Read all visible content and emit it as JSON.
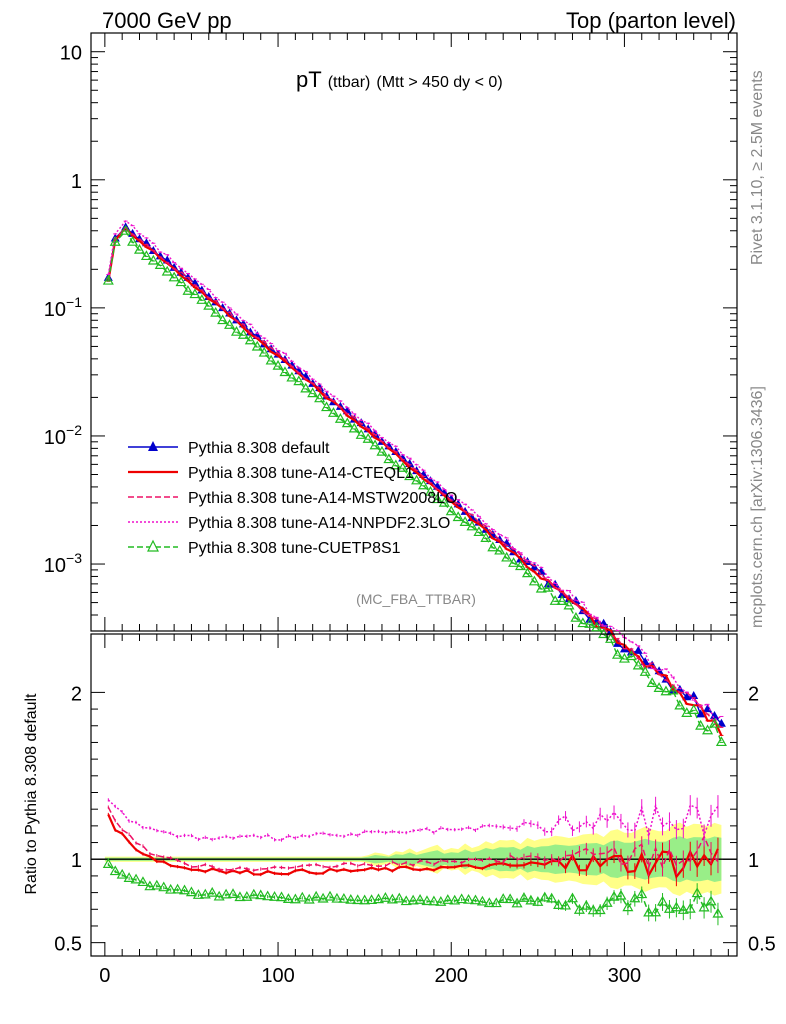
{
  "header": {
    "left": "7000 GeV pp",
    "right": "Top (parton level)"
  },
  "side_labels": {
    "rivet": "Rivet 3.1.10, ≥ 2.5M events",
    "mcplots": "mcplots.cern.ch [arXiv:1306.3436]"
  },
  "chart_data": [
    {
      "type": "line",
      "title_main": "pT",
      "title_sub1": "(ttbar)",
      "title_sub2": "(Mtt > 450 dy < 0)",
      "analysis_tag": "(MC_FBA_TTBAR)",
      "yscale": "log",
      "ylim": [
        0.0003,
        14
      ],
      "xlim": [
        -8,
        365
      ],
      "ytick_labels": [
        {
          "value": 10,
          "label": "10"
        },
        {
          "value": 1,
          "label": "1"
        },
        {
          "value": 0.1,
          "base": "10",
          "exp": "−1"
        },
        {
          "value": 0.01,
          "base": "10",
          "exp": "−2"
        },
        {
          "value": 0.001,
          "base": "10",
          "exp": "−3"
        }
      ],
      "legend_position": "lower-left",
      "model": {
        "peak_x": 12,
        "peak_y": 0.43,
        "first_points": [
          [
            2,
            0.17
          ],
          [
            6,
            0.34
          ]
        ],
        "decay_per_unit_x": 0.0151,
        "x_end": 357,
        "step": 4
      },
      "series": [
        {
          "name": "Pythia 8.308 default",
          "color": "#0000cc",
          "style": "solid",
          "marker": "triangle-filled",
          "scale": 1.0
        },
        {
          "name": "Pythia 8.308 tune-A14-CTEQL1",
          "color": "#ee0000",
          "style": "solid",
          "marker": "none",
          "scale": 0.97
        },
        {
          "name": "Pythia 8.308 tune-A14-MSTW2008LO",
          "color": "#ee1166",
          "style": "dashed",
          "marker": "none",
          "scale": 1.0
        },
        {
          "name": "Pythia 8.308 tune-A14-NNPDF2.3LO",
          "color": "#ee11cc",
          "style": "dotted",
          "marker": "none",
          "scale": 1.1
        },
        {
          "name": "Pythia 8.308 tune-CUETP8S1",
          "color": "#22bb22",
          "style": "dashed",
          "marker": "triangle-open",
          "scale": 0.82
        }
      ]
    },
    {
      "type": "line",
      "ylabel": "Ratio to Pythia 8.308 default",
      "ylim": [
        0.42,
        2.35
      ],
      "xlim": [
        -8,
        365
      ],
      "yticks": [
        0.5,
        1,
        2
      ],
      "ytick_labels": [
        "0.5",
        "1",
        "2"
      ],
      "xticks": [
        0,
        100,
        200,
        300
      ],
      "xtick_labels": [
        "0",
        "100",
        "200",
        "300"
      ],
      "series": [
        {
          "name": "Pythia 8.308 default",
          "values_note": "reference",
          "level": 1.0
        },
        {
          "name": "Pythia 8.308 tune-A14-CTEQL1",
          "start": 1.25,
          "plateau": 0.9,
          "end": 1.0
        },
        {
          "name": "Pythia 8.308 tune-A14-MSTW2008LO",
          "start": 1.3,
          "plateau": 0.92,
          "end": 1.05
        },
        {
          "name": "Pythia 8.308 tune-A14-NNPDF2.3LO",
          "start": 1.35,
          "plateau": 1.1,
          "end": 1.25
        },
        {
          "name": "Pythia 8.308 tune-CUETP8S1",
          "start": 0.97,
          "plateau": 0.78,
          "end": 0.72
        }
      ]
    }
  ]
}
